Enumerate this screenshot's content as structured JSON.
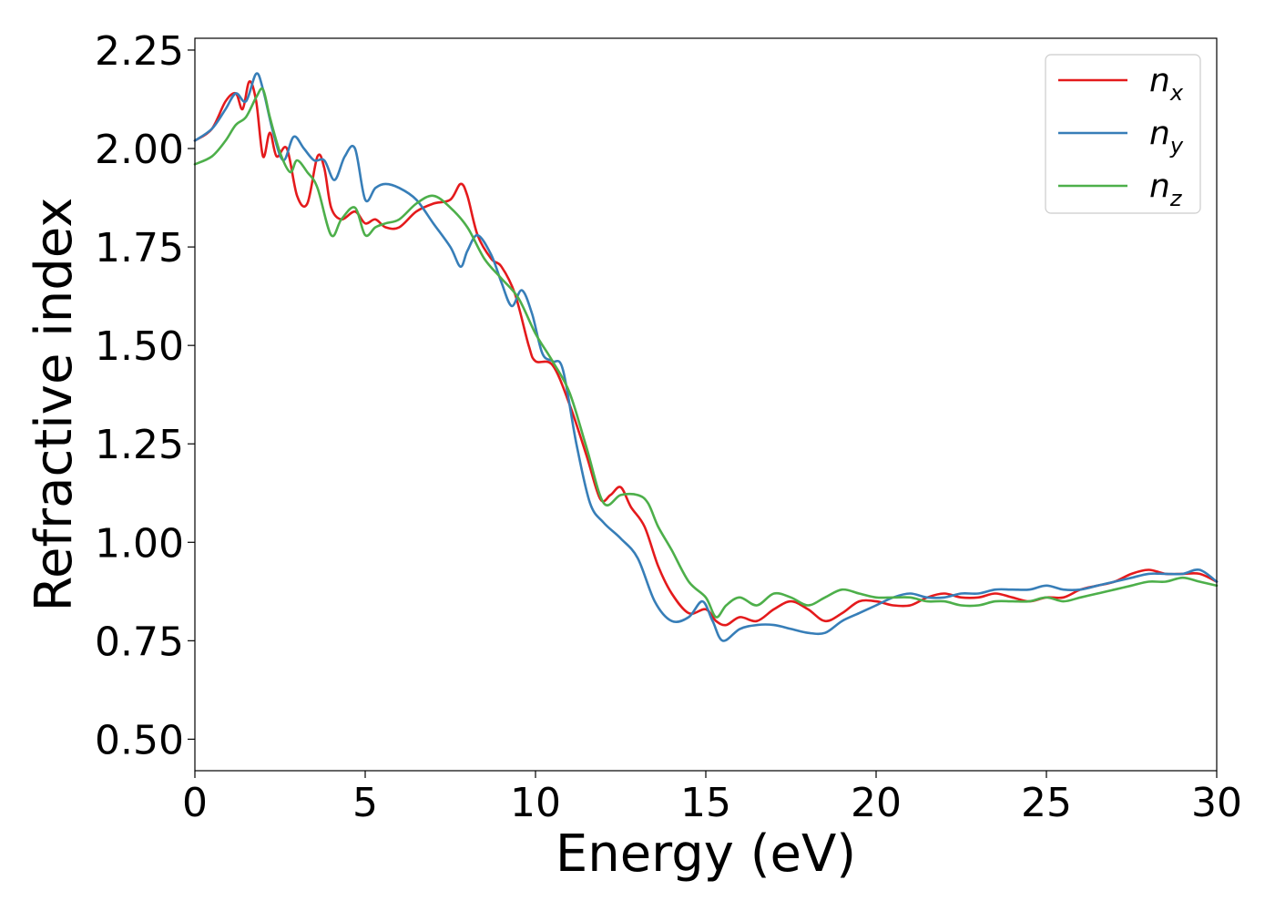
{
  "chart_data": {
    "type": "line",
    "title": "",
    "xlabel": "Energy (eV)",
    "ylabel": "Refractive index",
    "xlim": [
      0,
      30
    ],
    "ylim": [
      0.42,
      2.28
    ],
    "xticks": [
      0,
      5,
      10,
      15,
      20,
      25,
      30
    ],
    "xtick_labels": [
      "0",
      "5",
      "10",
      "15",
      "20",
      "25",
      "30"
    ],
    "yticks": [
      0.5,
      0.75,
      1.0,
      1.25,
      1.5,
      1.75,
      2.0,
      2.25
    ],
    "ytick_labels": [
      "0.50",
      "0.75",
      "1.00",
      "1.25",
      "1.50",
      "1.75",
      "2.00",
      "2.25"
    ],
    "grid": false,
    "legend_position": "top-right",
    "series": [
      {
        "name": "n",
        "subscript": "x",
        "color": "#e41a1c",
        "x": [
          0,
          0.5,
          0.9,
          1.2,
          1.4,
          1.6,
          1.8,
          2.0,
          2.2,
          2.4,
          2.7,
          3.0,
          3.3,
          3.6,
          3.8,
          4.0,
          4.3,
          4.7,
          5.0,
          5.3,
          5.6,
          6.0,
          6.5,
          7.0,
          7.5,
          7.8,
          8.0,
          8.3,
          8.7,
          9.0,
          9.4,
          9.8,
          10.0,
          10.5,
          11.0,
          11.5,
          11.9,
          12.2,
          12.5,
          12.8,
          13.2,
          13.6,
          14.0,
          14.5,
          15.0,
          15.3,
          15.6,
          16.0,
          16.5,
          17.0,
          17.5,
          18.0,
          18.5,
          19.0,
          19.5,
          20.0,
          20.5,
          21.0,
          21.5,
          22.0,
          22.5,
          23.0,
          23.5,
          24.0,
          24.5,
          25.0,
          25.5,
          26.0,
          26.5,
          27.0,
          27.5,
          28.0,
          28.5,
          29.0,
          29.5,
          30.0
        ],
        "y": [
          2.02,
          2.05,
          2.12,
          2.14,
          2.1,
          2.17,
          2.12,
          1.98,
          2.04,
          1.98,
          2.0,
          1.88,
          1.86,
          1.98,
          1.95,
          1.85,
          1.82,
          1.84,
          1.81,
          1.82,
          1.8,
          1.8,
          1.84,
          1.86,
          1.87,
          1.91,
          1.88,
          1.78,
          1.72,
          1.7,
          1.63,
          1.5,
          1.46,
          1.45,
          1.35,
          1.22,
          1.11,
          1.12,
          1.14,
          1.09,
          1.04,
          0.94,
          0.87,
          0.82,
          0.83,
          0.8,
          0.79,
          0.81,
          0.8,
          0.83,
          0.85,
          0.83,
          0.8,
          0.82,
          0.85,
          0.85,
          0.84,
          0.84,
          0.86,
          0.87,
          0.86,
          0.86,
          0.87,
          0.86,
          0.85,
          0.86,
          0.86,
          0.88,
          0.89,
          0.9,
          0.92,
          0.93,
          0.92,
          0.92,
          0.92,
          0.9
        ]
      },
      {
        "name": "n",
        "subscript": "y",
        "color": "#377eb8",
        "x": [
          0,
          0.5,
          0.9,
          1.2,
          1.5,
          1.8,
          2.0,
          2.3,
          2.6,
          2.9,
          3.2,
          3.5,
          3.8,
          4.1,
          4.4,
          4.7,
          5.0,
          5.3,
          5.6,
          6.0,
          6.5,
          7.0,
          7.5,
          7.8,
          8.0,
          8.3,
          8.7,
          9.0,
          9.3,
          9.6,
          9.9,
          10.2,
          10.5,
          10.8,
          11.2,
          11.6,
          12.0,
          12.5,
          13.0,
          13.5,
          14.0,
          14.5,
          14.9,
          15.2,
          15.5,
          16.0,
          16.5,
          17.0,
          17.5,
          18.0,
          18.5,
          19.0,
          19.5,
          20.0,
          20.5,
          21.0,
          21.5,
          22.0,
          22.5,
          23.0,
          23.5,
          24.0,
          24.5,
          25.0,
          25.5,
          26.0,
          26.5,
          27.0,
          27.5,
          28.0,
          28.5,
          29.0,
          29.5,
          30.0
        ],
        "y": [
          2.02,
          2.05,
          2.1,
          2.14,
          2.12,
          2.19,
          2.15,
          2.04,
          1.97,
          2.03,
          2.0,
          1.97,
          1.97,
          1.92,
          1.98,
          2.0,
          1.87,
          1.9,
          1.91,
          1.9,
          1.87,
          1.81,
          1.75,
          1.7,
          1.74,
          1.78,
          1.73,
          1.66,
          1.6,
          1.64,
          1.58,
          1.48,
          1.46,
          1.44,
          1.25,
          1.1,
          1.05,
          1.01,
          0.96,
          0.85,
          0.8,
          0.81,
          0.85,
          0.8,
          0.75,
          0.78,
          0.79,
          0.79,
          0.78,
          0.77,
          0.77,
          0.8,
          0.82,
          0.84,
          0.86,
          0.87,
          0.86,
          0.86,
          0.87,
          0.87,
          0.88,
          0.88,
          0.88,
          0.89,
          0.88,
          0.88,
          0.89,
          0.9,
          0.91,
          0.92,
          0.92,
          0.92,
          0.93,
          0.9
        ]
      },
      {
        "name": "n",
        "subscript": "z",
        "color": "#4daf4a",
        "x": [
          0,
          0.5,
          0.9,
          1.2,
          1.5,
          1.8,
          2.0,
          2.2,
          2.5,
          2.8,
          3.0,
          3.3,
          3.6,
          4.0,
          4.3,
          4.7,
          5.0,
          5.3,
          5.6,
          6.0,
          6.5,
          7.0,
          7.5,
          8.0,
          8.5,
          9.0,
          9.5,
          10.0,
          10.5,
          11.0,
          11.5,
          12.0,
          12.5,
          13.0,
          13.3,
          13.6,
          14.0,
          14.5,
          15.0,
          15.3,
          15.6,
          16.0,
          16.5,
          17.0,
          17.5,
          18.0,
          18.5,
          19.0,
          19.5,
          20.0,
          20.5,
          21.0,
          21.5,
          22.0,
          22.5,
          23.0,
          23.5,
          24.0,
          24.5,
          25.0,
          25.5,
          26.0,
          26.5,
          27.0,
          27.5,
          28.0,
          28.5,
          29.0,
          29.5,
          30.0
        ],
        "y": [
          1.96,
          1.98,
          2.02,
          2.06,
          2.08,
          2.13,
          2.15,
          2.08,
          1.99,
          1.94,
          1.97,
          1.94,
          1.9,
          1.78,
          1.82,
          1.85,
          1.78,
          1.8,
          1.81,
          1.82,
          1.86,
          1.88,
          1.85,
          1.8,
          1.72,
          1.67,
          1.62,
          1.53,
          1.46,
          1.38,
          1.24,
          1.1,
          1.12,
          1.12,
          1.1,
          1.04,
          0.98,
          0.9,
          0.86,
          0.81,
          0.84,
          0.86,
          0.84,
          0.87,
          0.86,
          0.84,
          0.86,
          0.88,
          0.87,
          0.86,
          0.86,
          0.86,
          0.85,
          0.85,
          0.84,
          0.84,
          0.85,
          0.85,
          0.85,
          0.86,
          0.85,
          0.86,
          0.87,
          0.88,
          0.89,
          0.9,
          0.9,
          0.91,
          0.9,
          0.89
        ]
      }
    ]
  }
}
